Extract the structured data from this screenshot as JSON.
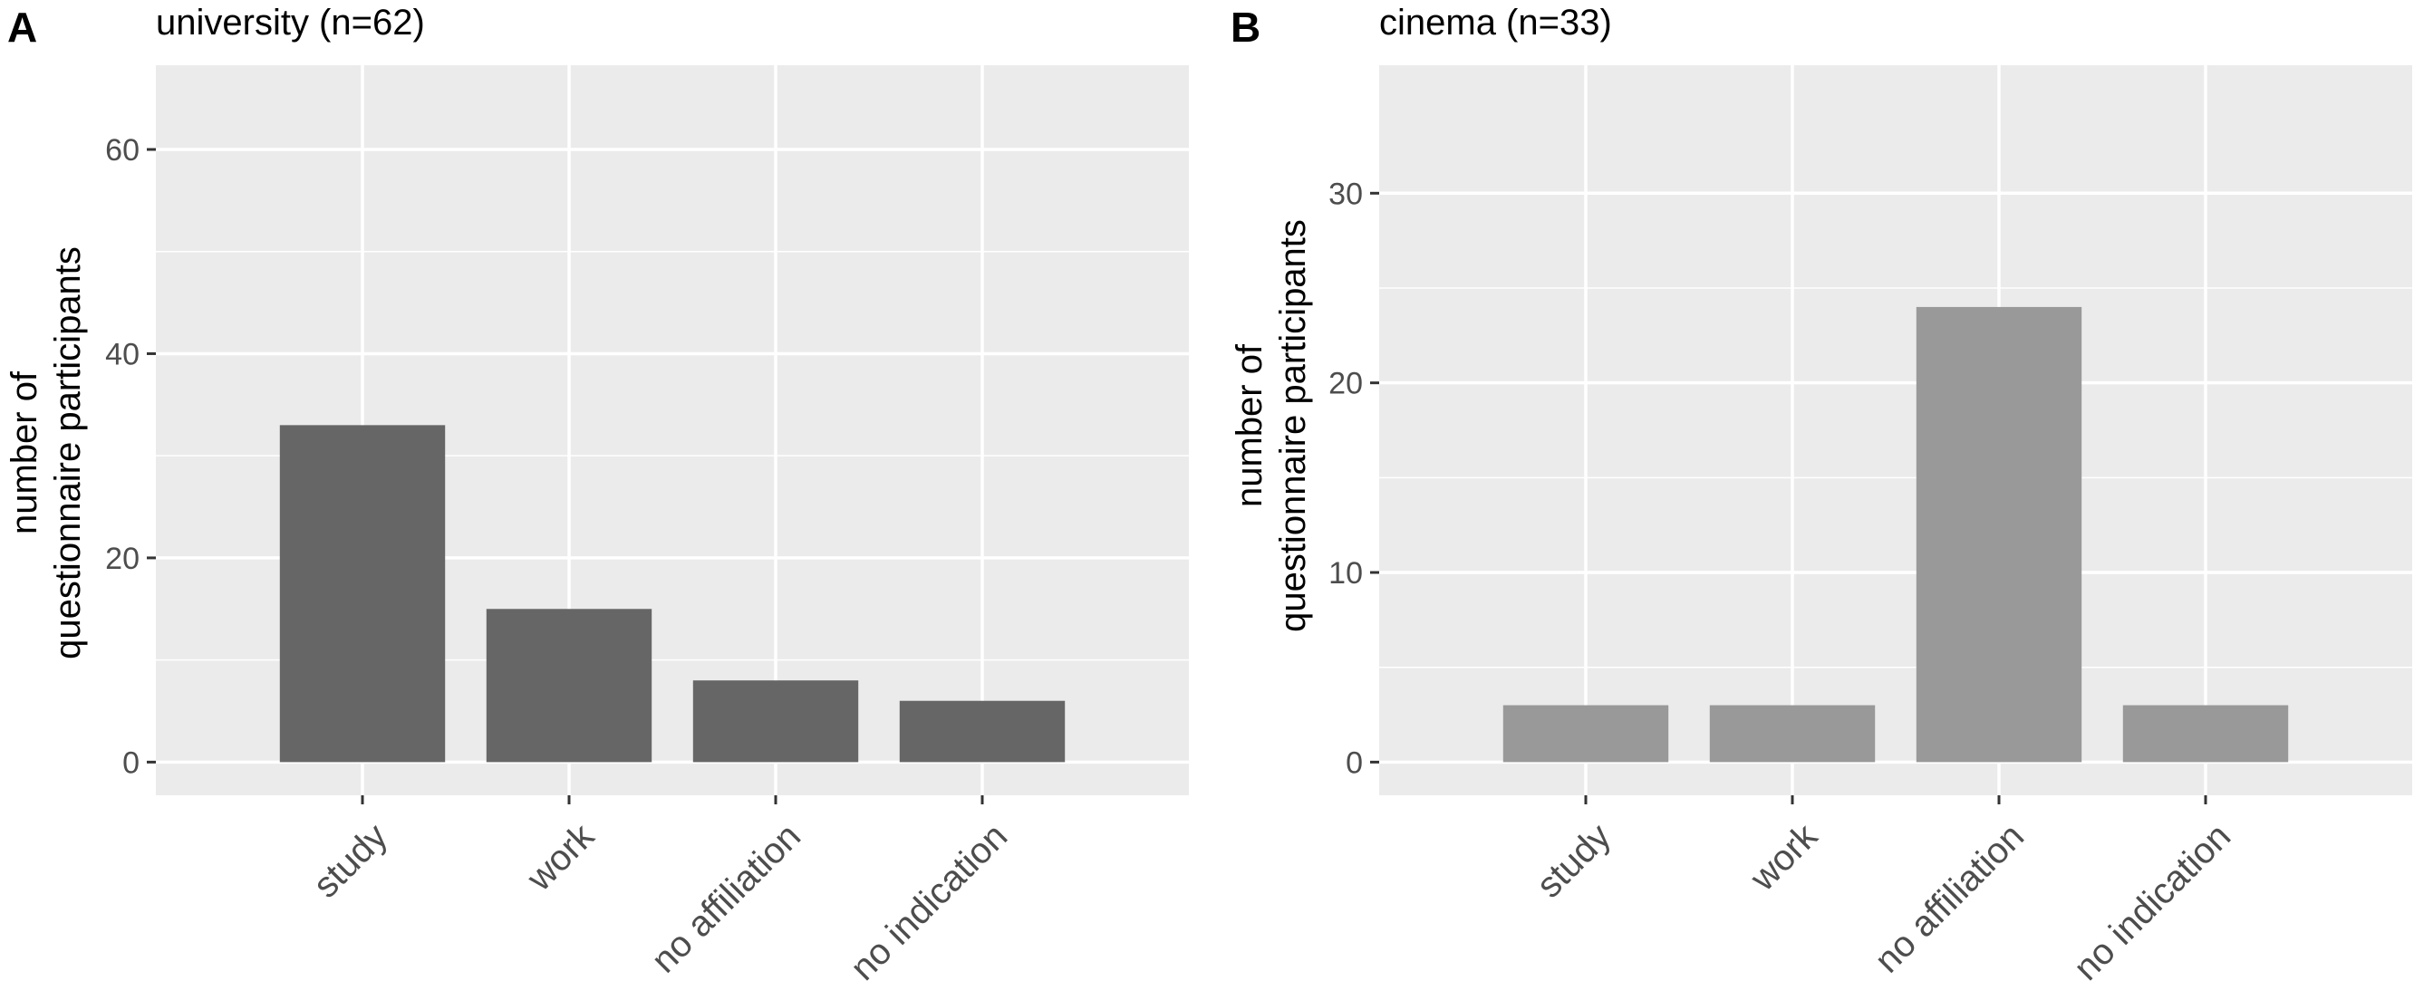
{
  "chart_data": [
    {
      "type": "bar",
      "panel_label": "A",
      "title": "university (n=62)",
      "xlabel": "",
      "ylabel_lines": [
        "number of",
        "questionnaire participants"
      ],
      "categories": [
        "study",
        "work",
        "no affiliation",
        "no indication"
      ],
      "values": [
        33,
        15,
        8,
        6
      ],
      "ylim": [
        0,
        65
      ],
      "yticks": [
        0,
        20,
        40,
        60
      ],
      "grid": true,
      "bar_color": "#666666",
      "legend": "none"
    },
    {
      "type": "bar",
      "panel_label": "B",
      "title": "cinema (n=33)",
      "xlabel": "",
      "ylabel_lines": [
        "number of",
        "questionnaire participants"
      ],
      "categories": [
        "study",
        "work",
        "no affiliation",
        "no indication"
      ],
      "values": [
        3,
        3,
        24,
        3
      ],
      "ylim": [
        0,
        35
      ],
      "yticks": [
        0,
        10,
        20,
        30
      ],
      "grid": true,
      "bar_color": "#999999",
      "legend": "none"
    }
  ],
  "colors": {
    "panel_background": "#ebebeb",
    "grid_line": "#ffffff",
    "tick_text": "#4d4d4d",
    "text": "#000000"
  }
}
